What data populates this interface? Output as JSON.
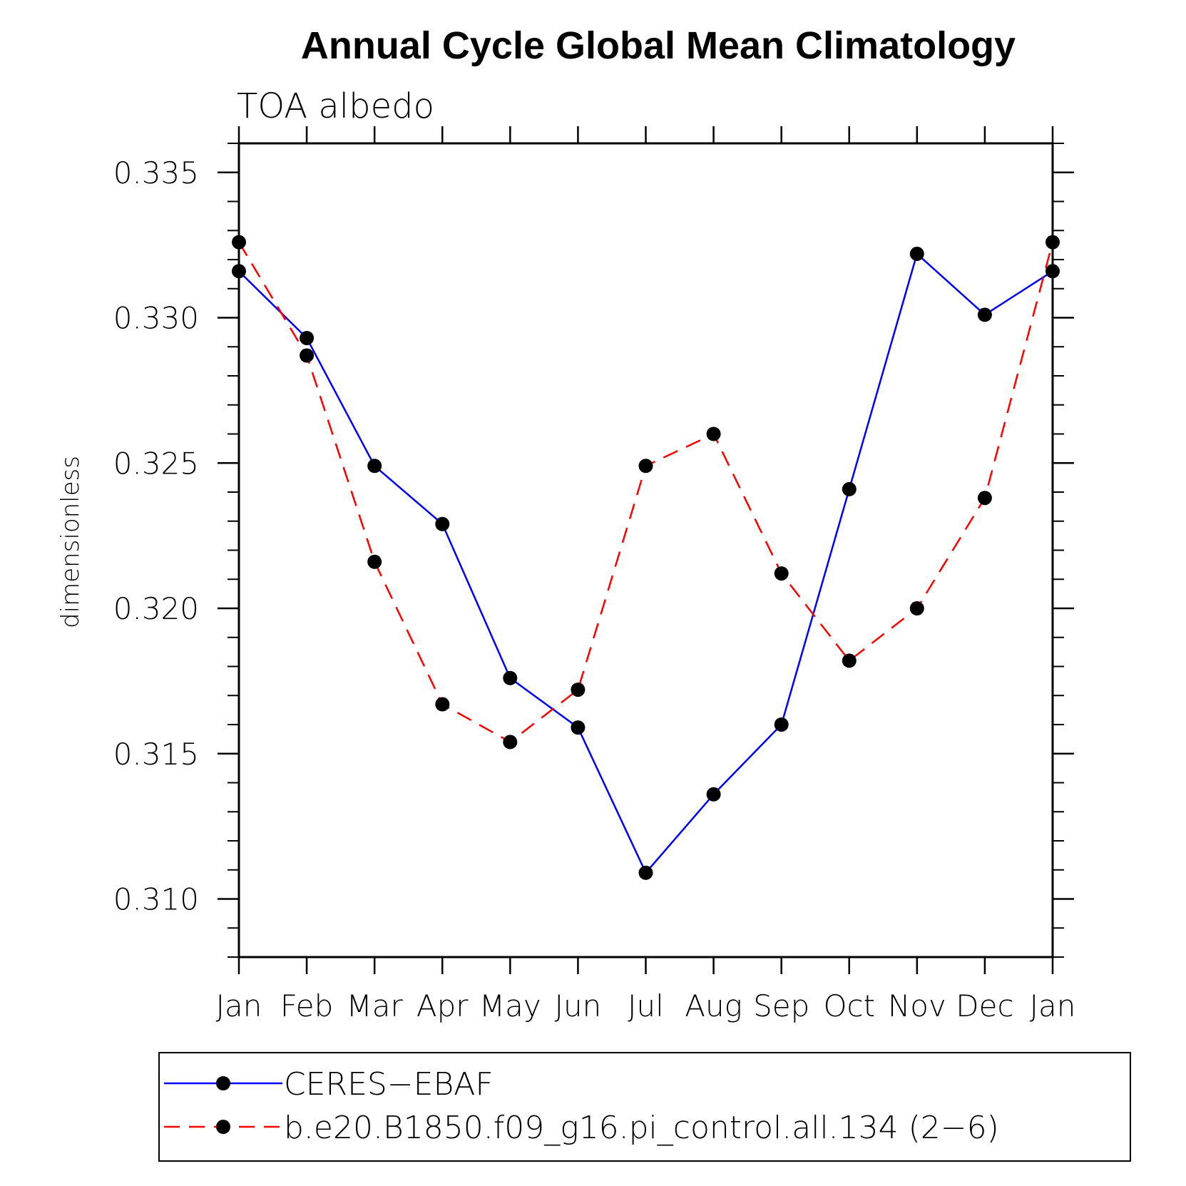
{
  "chart_data": {
    "type": "line",
    "title": "Annual Cycle Global Mean Climatology",
    "subtitle": "TOA albedo",
    "xlabel": "",
    "ylabel": "dimensionless",
    "categories": [
      "Jan",
      "Feb",
      "Mar",
      "Apr",
      "May",
      "Jun",
      "Jul",
      "Aug",
      "Sep",
      "Oct",
      "Nov",
      "Dec",
      "Jan"
    ],
    "yticks": [
      "0.310",
      "0.315",
      "0.320",
      "0.325",
      "0.330",
      "0.335"
    ],
    "ylim": [
      0.308,
      0.336
    ],
    "legend_position": "bottom",
    "series": [
      {
        "name": "CERES−EBAF",
        "color": "#0000ff",
        "line_style": "solid",
        "marker": "filled-circle",
        "values": [
          0.3316,
          0.3293,
          0.3249,
          0.3229,
          0.3176,
          0.3159,
          0.3109,
          0.3136,
          0.316,
          0.3241,
          0.3322,
          0.3301,
          0.3316
        ]
      },
      {
        "name": "b.e20.B1850.f09_g16.pi_control.all.134 (2−6)",
        "color": "#ff0000",
        "line_style": "dashed",
        "marker": "filled-circle",
        "values": [
          0.3326,
          0.3287,
          0.3216,
          0.3167,
          0.3154,
          0.3172,
          0.3249,
          0.326,
          0.3212,
          0.3182,
          0.32,
          0.3238,
          0.3326
        ]
      }
    ]
  }
}
